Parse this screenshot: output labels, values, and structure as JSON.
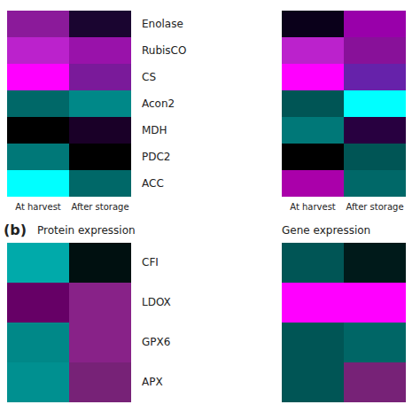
{
  "chart_data": {
    "type": "heatmap",
    "panel_label": "(b)",
    "x": [
      "At harvest",
      "After storage"
    ],
    "panel_titles": [
      "Protein expression",
      "Gene expression"
    ],
    "sections": [
      {
        "rows": [
          "Enolase",
          "RubisCO",
          "CS",
          "Acon2",
          "MDH",
          "PDC2",
          "ACC"
        ],
        "panels": [
          [
            [
              "#8B1A9A",
              "#1A0530"
            ],
            [
              "#BB22CC",
              "#9912AA"
            ],
            [
              "#FF00FF",
              "#7A1A9A"
            ],
            [
              "#006868",
              "#008888"
            ],
            [
              "#000000",
              "#1A0028"
            ],
            [
              "#007878",
              "#000000"
            ],
            [
              "#00FFFF",
              "#006868"
            ]
          ],
          [
            [
              "#0A001A",
              "#9900AA"
            ],
            [
              "#BB22CC",
              "#881199"
            ],
            [
              "#FF00FF",
              "#6622AA"
            ],
            [
              "#005555",
              "#00FFFF"
            ],
            [
              "#007878",
              "#280040"
            ],
            [
              "#000000",
              "#005555"
            ],
            [
              "#AA00AA",
              "#006868"
            ]
          ]
        ]
      },
      {
        "rows": [
          "CFI",
          "LDOX",
          "GPX6",
          "APX"
        ],
        "panels": [
          [
            [
              "#00AAAA",
              "#001010"
            ],
            [
              "#660066",
              "#882288"
            ],
            [
              "#008888",
              "#882288"
            ],
            [
              "#009090",
              "#772277"
            ]
          ],
          [
            [
              "#005555",
              "#001A1A"
            ],
            [
              "#FF00FF",
              "#FF00FF"
            ],
            [
              "#005555",
              "#006666"
            ],
            [
              "#005555",
              "#772277"
            ]
          ]
        ]
      }
    ]
  }
}
